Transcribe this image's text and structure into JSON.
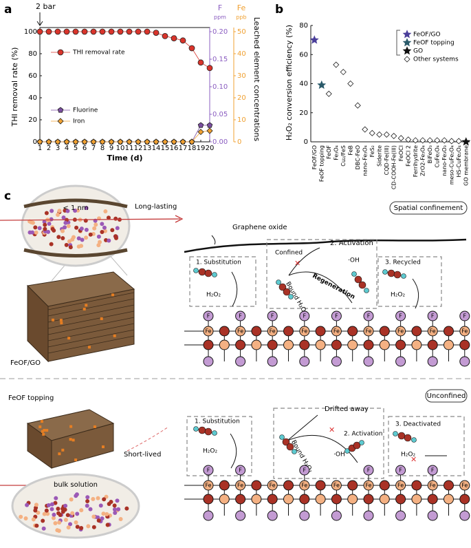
{
  "panel_labels": [
    "a",
    "b",
    "c"
  ],
  "chart_data": [
    {
      "type": "line",
      "annotation": "2 bar",
      "xlabel": "Time (d)",
      "ylabel": "THI removal rate (%)",
      "y2label": "F",
      "y2unit": "ppm",
      "y3label": "Fe",
      "y3unit": "ppb",
      "y23label": "Leached element concentrations",
      "x": [
        1,
        2,
        3,
        4,
        5,
        6,
        7,
        8,
        9,
        10,
        11,
        12,
        13,
        14,
        15,
        16,
        17,
        18,
        19,
        20
      ],
      "xlim": [
        1,
        20
      ],
      "xticks": [
        1,
        2,
        3,
        4,
        5,
        6,
        7,
        8,
        9,
        10,
        11,
        12,
        13,
        14,
        15,
        16,
        17,
        18,
        19,
        20
      ],
      "ylim": [
        0,
        100
      ],
      "yticks": [
        0,
        20,
        40,
        60,
        80,
        100
      ],
      "y2lim": [
        0,
        0.2
      ],
      "y2ticks": [
        {
          "value": 0,
          "label": "0.00"
        },
        {
          "value": 0.05,
          "label": "0.05"
        },
        {
          "value": 0.1,
          "label": "0.10"
        },
        {
          "value": 0.15,
          "label": "0.15"
        },
        {
          "value": 0.2,
          "label": "0.20"
        }
      ],
      "y2color": "#8a5cc0",
      "y3lim": [
        0,
        50
      ],
      "y3ticks": [
        0,
        10,
        20,
        30,
        40,
        50
      ],
      "y3color": "#f0a030",
      "series": [
        {
          "name": "THI removal rate",
          "color": "#d9342b",
          "marker": "circle",
          "axis": "y",
          "values": [
            100,
            100,
            100,
            100,
            100,
            100,
            100,
            100,
            100,
            100,
            100,
            100,
            100,
            99,
            96,
            94,
            92,
            85,
            72,
            67
          ]
        },
        {
          "name": "Fluorine",
          "color": "#7a4ea0",
          "marker": "pentagon",
          "axis": "y2",
          "values": [
            0,
            0,
            0,
            0,
            0,
            0,
            0,
            0,
            0,
            0,
            0,
            0,
            0,
            0,
            0,
            0,
            0,
            0,
            0.03,
            0.03
          ]
        },
        {
          "name": "Iron",
          "color": "#f0a030",
          "marker": "diamond",
          "axis": "y3",
          "values": [
            0,
            0,
            0,
            0,
            0,
            0,
            0,
            0,
            0,
            0,
            0,
            0,
            0,
            0,
            0,
            0,
            0,
            0,
            4.5,
            5
          ]
        }
      ]
    },
    {
      "type": "scatter",
      "ylabel": "H₂O₂ conversion efficiency (%)",
      "categories": [
        "FeOF/GO",
        "FeOF topping",
        "FeOF",
        "Fe₃O₄",
        "Cu₂/FeS",
        "FeB",
        "DBC-FeO",
        "nano-Fe₃O₄",
        "FeS₂",
        "Siderite",
        "CQD-Fe(III)",
        "CD-COOH-Fe(III)",
        "FeOCl",
        "FeOCl 2",
        "Ferrihydrite",
        "ZrO2-Fe₃O₄",
        "BiFeO₃",
        "CuFe₂O₄",
        "nano-Fe₃O₃",
        "meso-CuFe₂O₄",
        "HS-CuFe₂O₄",
        "GO membrane"
      ],
      "ylim": [
        0,
        80
      ],
      "yticks": [
        0,
        20,
        40,
        60,
        80
      ],
      "series": [
        {
          "name": "FeOF/GO",
          "color": "#4a3f9a",
          "marker": "star",
          "values": [
            70,
            null,
            null,
            null,
            null,
            null,
            null,
            null,
            null,
            null,
            null,
            null,
            null,
            null,
            null,
            null,
            null,
            null,
            null,
            null,
            null,
            null
          ]
        },
        {
          "name": "FeOF topping",
          "color": "#2a5a6a",
          "marker": "star",
          "values": [
            null,
            39,
            null,
            null,
            null,
            null,
            null,
            null,
            null,
            null,
            null,
            null,
            null,
            null,
            null,
            null,
            null,
            null,
            null,
            null,
            null,
            null
          ]
        },
        {
          "name": "GO",
          "color": "#111111",
          "marker": "star",
          "values": [
            null,
            null,
            null,
            null,
            null,
            null,
            null,
            null,
            null,
            null,
            null,
            null,
            null,
            null,
            null,
            null,
            null,
            null,
            null,
            null,
            null,
            0
          ]
        },
        {
          "name": "Other systems",
          "color": "#111111",
          "marker": "diamond",
          "values": [
            null,
            null,
            33,
            53,
            48,
            40,
            25,
            8.5,
            6,
            5,
            5,
            4,
            2.5,
            1.5,
            1,
            1,
            1,
            1,
            1,
            0.5,
            0.5,
            null
          ]
        }
      ]
    }
  ],
  "diagram": {
    "confined": {
      "title": "FeOF/GO",
      "feature": "Long-lasting",
      "spacing": "< 1 nm",
      "mode": "Spatial confinement",
      "sheet": "Graphene oxide",
      "step1": "1. Substitution",
      "reagent": "H₂O₂",
      "confined": "Confined",
      "step2": "2. Activation",
      "radical": "·OH",
      "regeneration": "Regeneration",
      "bound": "Bound H₂O₂",
      "step3": "3. Recycled"
    },
    "unconfined": {
      "title": "FeOF topping",
      "feature": "Short-lived",
      "medium": "bulk solution",
      "mode": "Unconfined",
      "drift": "Drifted away",
      "step1": "1. Substitution",
      "reagent": "H₂O₂",
      "step2": "2. Activation",
      "radical": "·OH",
      "bound": "Bound H₂O₂",
      "step3": "3. Deactivated"
    },
    "atoms": {
      "f": "F",
      "fe": "Fe"
    }
  }
}
